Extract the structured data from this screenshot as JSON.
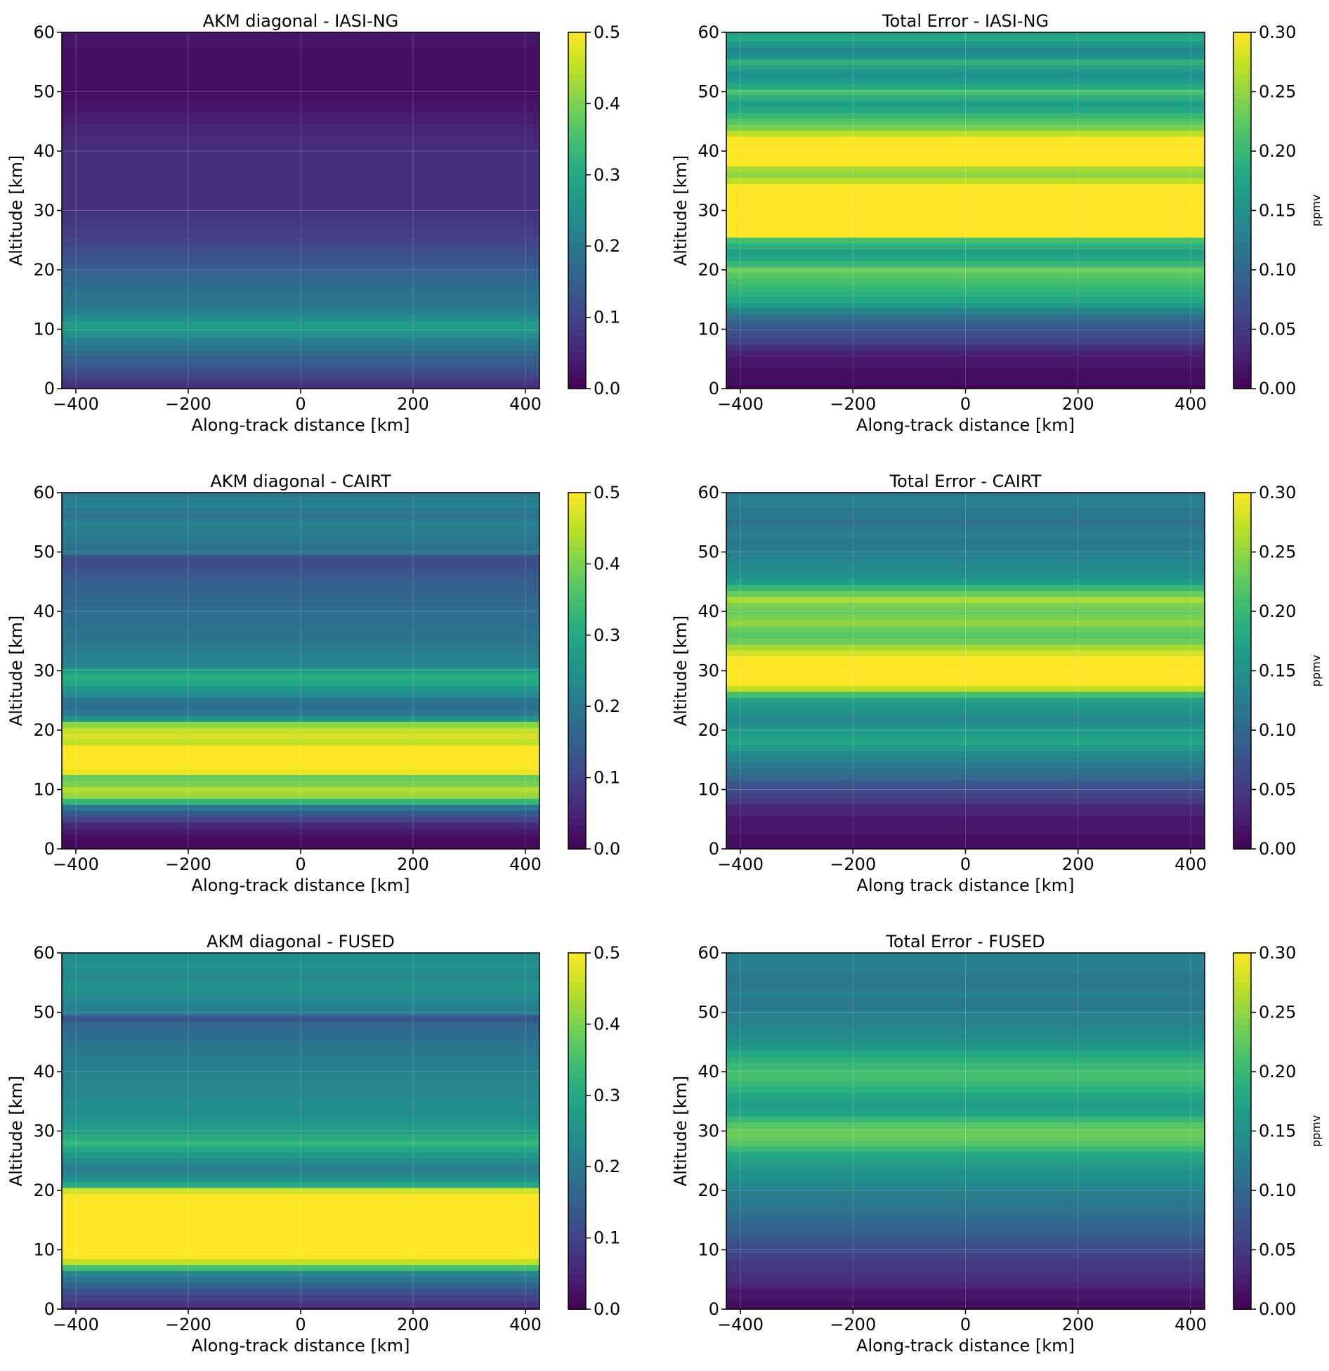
{
  "chart_data": [
    {
      "type": "heatmap",
      "title": "AKM diagonal - IASI-NG",
      "xlabel": "Along-track distance [km]",
      "ylabel": "Altitude [km]",
      "xlim": [
        -425,
        425
      ],
      "ylim": [
        0,
        60
      ],
      "xticks": [
        -400,
        -200,
        0,
        200,
        400
      ],
      "yticks": [
        0,
        10,
        20,
        30,
        40,
        50,
        60
      ],
      "grid": true,
      "colormap": "viridis",
      "colorbar": {
        "vmin": 0.0,
        "vmax": 0.5,
        "ticks": [
          "0.0",
          "0.1",
          "0.2",
          "0.3",
          "0.4",
          "0.5"
        ],
        "label": ""
      },
      "profile": {
        "altitude": [
          0,
          1,
          2,
          3,
          4,
          5,
          6,
          7,
          8,
          9,
          10,
          11,
          12,
          13,
          14,
          15,
          16,
          17,
          18,
          19,
          20,
          21,
          22,
          23,
          24,
          25,
          26,
          27,
          28,
          29,
          30,
          31,
          32,
          33,
          34,
          35,
          36,
          37,
          38,
          39,
          40,
          41,
          42,
          43,
          44,
          45,
          46,
          47,
          48,
          49,
          50,
          51,
          52,
          53,
          54,
          55,
          56,
          57,
          58,
          59,
          60
        ],
        "values": [
          0.06,
          0.08,
          0.1,
          0.12,
          0.14,
          0.15,
          0.17,
          0.19,
          0.21,
          0.24,
          0.27,
          0.27,
          0.24,
          0.21,
          0.2,
          0.19,
          0.19,
          0.18,
          0.17,
          0.16,
          0.15,
          0.14,
          0.13,
          0.12,
          0.11,
          0.1,
          0.09,
          0.09,
          0.08,
          0.08,
          0.07,
          0.07,
          0.07,
          0.07,
          0.07,
          0.07,
          0.07,
          0.07,
          0.07,
          0.07,
          0.07,
          0.06,
          0.06,
          0.05,
          0.05,
          0.04,
          0.04,
          0.03,
          0.03,
          0.02,
          0.02,
          0.02,
          0.02,
          0.02,
          0.02,
          0.02,
          0.02,
          0.02,
          0.03,
          0.03,
          0.03
        ]
      }
    },
    {
      "type": "heatmap",
      "title": "Total Error - IASI-NG",
      "xlabel": "Along-track distance [km]",
      "ylabel": "Altitude [km]",
      "xlim": [
        -425,
        425
      ],
      "ylim": [
        0,
        60
      ],
      "xticks": [
        -400,
        -200,
        0,
        200,
        400
      ],
      "yticks": [
        0,
        10,
        20,
        30,
        40,
        50,
        60
      ],
      "grid": true,
      "colormap": "viridis",
      "colorbar": {
        "vmin": 0.0,
        "vmax": 0.3,
        "ticks": [
          "0.00",
          "0.05",
          "0.10",
          "0.15",
          "0.20",
          "0.25",
          "0.30"
        ],
        "label": "ppmv"
      },
      "profile": {
        "altitude": [
          0,
          1,
          2,
          3,
          4,
          5,
          6,
          7,
          8,
          9,
          10,
          11,
          12,
          13,
          14,
          15,
          16,
          17,
          18,
          19,
          20,
          21,
          22,
          23,
          24,
          25,
          26,
          27,
          28,
          29,
          30,
          31,
          32,
          33,
          34,
          35,
          36,
          37,
          38,
          39,
          40,
          41,
          42,
          43,
          44,
          45,
          46,
          47,
          48,
          49,
          50,
          51,
          52,
          53,
          54,
          55,
          56,
          57,
          58,
          59,
          60
        ],
        "values": [
          0.0,
          0.01,
          0.01,
          0.01,
          0.02,
          0.02,
          0.03,
          0.04,
          0.06,
          0.07,
          0.08,
          0.09,
          0.11,
          0.13,
          0.16,
          0.18,
          0.19,
          0.2,
          0.21,
          0.22,
          0.23,
          0.2,
          0.18,
          0.17,
          0.19,
          0.21,
          0.3,
          0.3,
          0.3,
          0.3,
          0.3,
          0.3,
          0.3,
          0.3,
          0.3,
          0.27,
          0.25,
          0.26,
          0.3,
          0.3,
          0.3,
          0.3,
          0.3,
          0.27,
          0.24,
          0.22,
          0.2,
          0.18,
          0.17,
          0.19,
          0.21,
          0.18,
          0.16,
          0.15,
          0.17,
          0.19,
          0.15,
          0.14,
          0.16,
          0.18,
          0.17
        ]
      }
    },
    {
      "type": "heatmap",
      "title": "AKM diagonal - CAIRT",
      "xlabel": "Along-track distance [km]",
      "ylabel": "Altitude [km]",
      "xlim": [
        -425,
        425
      ],
      "ylim": [
        0,
        60
      ],
      "xticks": [
        -400,
        -200,
        0,
        200,
        400
      ],
      "yticks": [
        0,
        10,
        20,
        30,
        40,
        50,
        60
      ],
      "grid": true,
      "colormap": "viridis",
      "colorbar": {
        "vmin": 0.0,
        "vmax": 0.5,
        "ticks": [
          "0.0",
          "0.1",
          "0.2",
          "0.3",
          "0.4",
          "0.5"
        ],
        "label": ""
      },
      "profile": {
        "altitude": [
          0,
          1,
          2,
          3,
          4,
          5,
          6,
          7,
          8,
          9,
          10,
          11,
          12,
          13,
          14,
          15,
          16,
          17,
          18,
          19,
          20,
          21,
          22,
          23,
          24,
          25,
          26,
          27,
          28,
          29,
          30,
          31,
          32,
          33,
          34,
          35,
          36,
          37,
          38,
          39,
          40,
          41,
          42,
          43,
          44,
          45,
          46,
          47,
          48,
          49,
          50,
          51,
          52,
          53,
          54,
          55,
          56,
          57,
          58,
          59,
          60
        ],
        "values": [
          0.01,
          0.01,
          0.02,
          0.04,
          0.06,
          0.1,
          0.14,
          0.2,
          0.33,
          0.42,
          0.44,
          0.4,
          0.38,
          0.49,
          0.5,
          0.5,
          0.5,
          0.5,
          0.45,
          0.47,
          0.45,
          0.41,
          0.25,
          0.2,
          0.18,
          0.19,
          0.24,
          0.26,
          0.3,
          0.31,
          0.28,
          0.22,
          0.22,
          0.21,
          0.2,
          0.19,
          0.19,
          0.19,
          0.18,
          0.18,
          0.18,
          0.17,
          0.17,
          0.16,
          0.15,
          0.15,
          0.14,
          0.13,
          0.12,
          0.12,
          0.19,
          0.19,
          0.2,
          0.21,
          0.21,
          0.22,
          0.19,
          0.2,
          0.22,
          0.21,
          0.2
        ]
      }
    },
    {
      "type": "heatmap",
      "title": "Total Error - CAIRT",
      "xlabel": "Along track distance [km]",
      "ylabel": "Altitude [km]",
      "xlim": [
        -425,
        425
      ],
      "ylim": [
        0,
        60
      ],
      "xticks": [
        -400,
        -200,
        0,
        200,
        400
      ],
      "yticks": [
        0,
        10,
        20,
        30,
        40,
        50,
        60
      ],
      "grid": true,
      "colormap": "viridis",
      "colorbar": {
        "vmin": 0.0,
        "vmax": 0.3,
        "ticks": [
          "0.00",
          "0.05",
          "0.10",
          "0.15",
          "0.20",
          "0.25",
          "0.30"
        ],
        "label": "ppmv"
      },
      "profile": {
        "altitude": [
          0,
          1,
          2,
          3,
          4,
          5,
          6,
          7,
          8,
          9,
          10,
          11,
          12,
          13,
          14,
          15,
          16,
          17,
          18,
          19,
          20,
          21,
          22,
          23,
          24,
          25,
          26,
          27,
          28,
          29,
          30,
          31,
          32,
          33,
          34,
          35,
          36,
          37,
          38,
          39,
          40,
          41,
          42,
          43,
          44,
          45,
          46,
          47,
          48,
          49,
          50,
          51,
          52,
          53,
          54,
          55,
          56,
          57,
          58,
          59,
          60
        ],
        "values": [
          0.01,
          0.01,
          0.01,
          0.02,
          0.02,
          0.02,
          0.03,
          0.03,
          0.05,
          0.06,
          0.07,
          0.08,
          0.1,
          0.11,
          0.12,
          0.13,
          0.14,
          0.16,
          0.18,
          0.17,
          0.16,
          0.15,
          0.14,
          0.15,
          0.16,
          0.17,
          0.21,
          0.27,
          0.3,
          0.3,
          0.3,
          0.3,
          0.3,
          0.28,
          0.26,
          0.23,
          0.22,
          0.23,
          0.25,
          0.24,
          0.23,
          0.24,
          0.26,
          0.23,
          0.2,
          0.17,
          0.15,
          0.14,
          0.14,
          0.13,
          0.13,
          0.12,
          0.12,
          0.13,
          0.12,
          0.11,
          0.12,
          0.12,
          0.13,
          0.13,
          0.12
        ]
      }
    },
    {
      "type": "heatmap",
      "title": "AKM diagonal - FUSED",
      "xlabel": "Along-track distance [km]",
      "ylabel": "Altitude [km]",
      "xlim": [
        -425,
        425
      ],
      "ylim": [
        0,
        60
      ],
      "xticks": [
        -400,
        -200,
        0,
        200,
        400
      ],
      "yticks": [
        0,
        10,
        20,
        30,
        40,
        50,
        60
      ],
      "grid": true,
      "colormap": "viridis",
      "colorbar": {
        "vmin": 0.0,
        "vmax": 0.5,
        "ticks": [
          "0.0",
          "0.1",
          "0.2",
          "0.3",
          "0.4",
          "0.5"
        ],
        "label": ""
      },
      "profile": {
        "altitude": [
          0,
          1,
          2,
          3,
          4,
          5,
          6,
          7,
          8,
          9,
          10,
          11,
          12,
          13,
          14,
          15,
          16,
          17,
          18,
          19,
          20,
          21,
          22,
          23,
          24,
          25,
          26,
          27,
          28,
          29,
          30,
          31,
          32,
          33,
          34,
          35,
          36,
          37,
          38,
          39,
          40,
          41,
          42,
          43,
          44,
          45,
          46,
          47,
          48,
          49,
          50,
          51,
          52,
          53,
          54,
          55,
          56,
          57,
          58,
          59,
          60
        ],
        "values": [
          0.06,
          0.08,
          0.1,
          0.13,
          0.16,
          0.19,
          0.23,
          0.35,
          0.45,
          0.5,
          0.5,
          0.5,
          0.5,
          0.5,
          0.5,
          0.5,
          0.5,
          0.5,
          0.5,
          0.5,
          0.46,
          0.3,
          0.25,
          0.22,
          0.21,
          0.24,
          0.27,
          0.3,
          0.33,
          0.31,
          0.28,
          0.27,
          0.25,
          0.24,
          0.24,
          0.24,
          0.23,
          0.23,
          0.23,
          0.22,
          0.22,
          0.21,
          0.21,
          0.2,
          0.2,
          0.19,
          0.18,
          0.17,
          0.16,
          0.13,
          0.21,
          0.22,
          0.23,
          0.24,
          0.25,
          0.25,
          0.23,
          0.24,
          0.25,
          0.24,
          0.24
        ]
      }
    },
    {
      "type": "heatmap",
      "title": "Total Error - FUSED",
      "xlabel": "Along-track distance [km]",
      "ylabel": "Altitude [km]",
      "xlim": [
        -425,
        425
      ],
      "ylim": [
        0,
        60
      ],
      "xticks": [
        -400,
        -200,
        0,
        200,
        400
      ],
      "yticks": [
        0,
        10,
        20,
        30,
        40,
        50,
        60
      ],
      "grid": true,
      "colormap": "viridis",
      "colorbar": {
        "vmin": 0.0,
        "vmax": 0.3,
        "ticks": [
          "0.00",
          "0.05",
          "0.10",
          "0.15",
          "0.20",
          "0.25",
          "0.30"
        ],
        "label": "ppmv"
      },
      "profile": {
        "altitude": [
          0,
          1,
          2,
          3,
          4,
          5,
          6,
          7,
          8,
          9,
          10,
          11,
          12,
          13,
          14,
          15,
          16,
          17,
          18,
          19,
          20,
          21,
          22,
          23,
          24,
          25,
          26,
          27,
          28,
          29,
          30,
          31,
          32,
          33,
          34,
          35,
          36,
          37,
          38,
          39,
          40,
          41,
          42,
          43,
          44,
          45,
          46,
          47,
          48,
          49,
          50,
          51,
          52,
          53,
          54,
          55,
          56,
          57,
          58,
          59,
          60
        ],
        "values": [
          0.01,
          0.01,
          0.02,
          0.02,
          0.03,
          0.04,
          0.04,
          0.05,
          0.05,
          0.06,
          0.07,
          0.07,
          0.08,
          0.09,
          0.1,
          0.1,
          0.11,
          0.12,
          0.12,
          0.13,
          0.13,
          0.14,
          0.15,
          0.15,
          0.16,
          0.17,
          0.18,
          0.2,
          0.22,
          0.23,
          0.23,
          0.22,
          0.2,
          0.18,
          0.17,
          0.17,
          0.18,
          0.19,
          0.2,
          0.21,
          0.21,
          0.2,
          0.19,
          0.18,
          0.16,
          0.15,
          0.14,
          0.14,
          0.13,
          0.13,
          0.13,
          0.12,
          0.12,
          0.13,
          0.12,
          0.12,
          0.12,
          0.13,
          0.13,
          0.13,
          0.13
        ]
      }
    }
  ]
}
